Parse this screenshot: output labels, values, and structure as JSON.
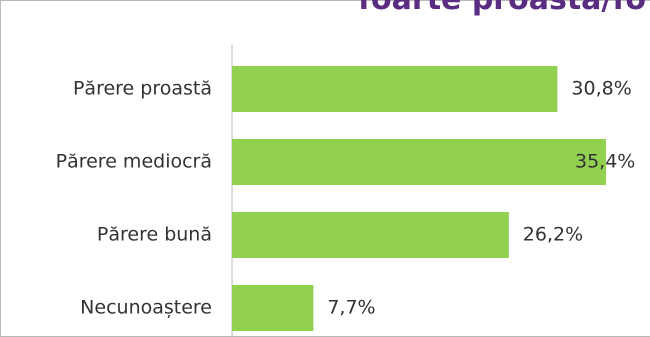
{
  "title": "foarte proastă/fo",
  "chart_data": {
    "type": "bar",
    "orientation": "horizontal",
    "categories": [
      "Părere proastă",
      "Părere mediocră",
      "Părere bună",
      "Necunoaștere"
    ],
    "values": [
      30.8,
      35.4,
      26.2,
      7.7
    ],
    "value_labels": [
      "30,8%",
      "35,4%",
      "26,2%",
      "7,7%"
    ],
    "unit": "%",
    "xlim": [
      0,
      35.4
    ],
    "grid": false,
    "legend": "none",
    "bar_color": "#92d050",
    "title_color": "#5a2d82"
  }
}
